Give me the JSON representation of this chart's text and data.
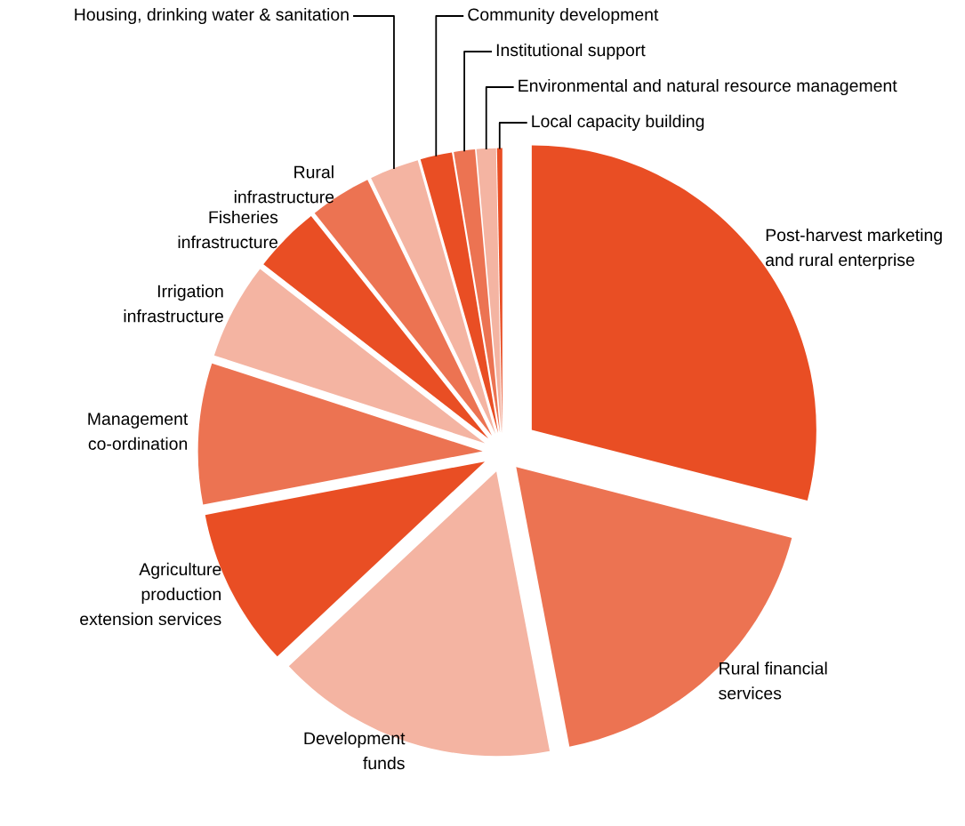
{
  "chart_data": {
    "type": "pie",
    "categories": [
      "Post-harvest marketing\nand rural enterprise",
      "Rural financial\nservices",
      "Development\nfunds",
      "Agriculture\nproduction\nextension services",
      "Management\nco-ordination",
      "Irrigation\ninfrastructure",
      "Fisheries\ninfrastructure",
      "Rural\ninfrastructure",
      "Housing, drinking water & sanitation",
      "Community development",
      "Institutional support",
      "Environmental and natural resource management",
      "Local capacity building"
    ],
    "values": [
      29,
      18,
      16,
      9,
      8,
      5.5,
      3.8,
      3.5,
      2.8,
      1.8,
      1.2,
      1.1,
      0.3
    ],
    "colors": [
      "#e94e24",
      "#ec7352",
      "#f4b4a2",
      "#e94e24",
      "#ec7352",
      "#f4b4a2",
      "#e94e24",
      "#ec7352",
      "#f4b4a2",
      "#e94e24",
      "#ec7352",
      "#f4b4a2",
      "#e94e24"
    ],
    "legend": false
  }
}
